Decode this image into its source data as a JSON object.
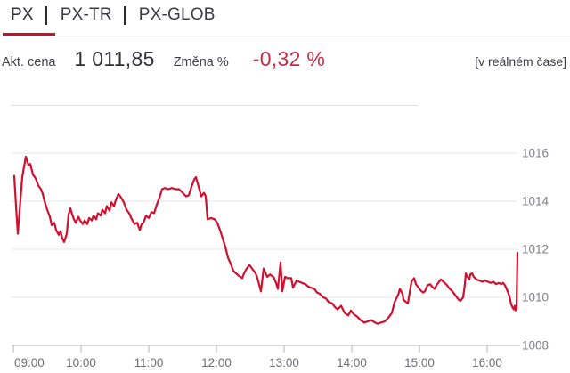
{
  "tabs": [
    {
      "label": "PX",
      "active": true
    },
    {
      "label": "PX-TR",
      "active": false
    },
    {
      "label": "PX-GLOB",
      "active": false
    }
  ],
  "price_row": {
    "price_label": "Akt. cena",
    "price_value": "1 011,85",
    "change_label": "Změna %",
    "change_value": "-0,32 %",
    "realtime_note": "[v reálném čase]"
  },
  "colors": {
    "accent_red": "#c8102e",
    "line_red": "#d10f2e",
    "change_red": "#c22e46",
    "grid_gray": "#e5e5e5",
    "axis_gray": "#b6b6bc"
  },
  "chart_data": {
    "type": "line",
    "title": "",
    "xlabel": "",
    "ylabel": "",
    "legend": "none",
    "grid": "horizontal",
    "y_labels_position": "right",
    "xlim": [
      9.0,
      16.47
    ],
    "ylim": [
      1008,
      1016
    ],
    "y_ticks": [
      {
        "v": 1008,
        "label": "1008"
      },
      {
        "v": 1010,
        "label": "1010"
      },
      {
        "v": 1012,
        "label": "1012"
      },
      {
        "v": 1014,
        "label": "1014"
      },
      {
        "v": 1016,
        "label": "1016"
      }
    ],
    "x_ticks": [
      {
        "t": 9,
        "label": "09:00"
      },
      {
        "t": 10,
        "label": "10:00"
      },
      {
        "t": 11,
        "label": "11:00"
      },
      {
        "t": 12,
        "label": "12:00"
      },
      {
        "t": 13,
        "label": "13:00"
      },
      {
        "t": 14,
        "label": "14:00"
      },
      {
        "t": 15,
        "label": "15:00"
      },
      {
        "t": 16,
        "label": "16:00"
      }
    ],
    "series_name": "PX",
    "points": [
      [
        9.013,
        1015.05
      ],
      [
        9.039,
        1013.8
      ],
      [
        9.066,
        1012.65
      ],
      [
        9.092,
        1013.6
      ],
      [
        9.132,
        1015.0
      ],
      [
        9.184,
        1015.85
      ],
      [
        9.224,
        1015.5
      ],
      [
        9.25,
        1015.55
      ],
      [
        9.289,
        1015.1
      ],
      [
        9.329,
        1014.95
      ],
      [
        9.368,
        1014.65
      ],
      [
        9.408,
        1014.5
      ],
      [
        9.434,
        1014.3
      ],
      [
        9.461,
        1014.0
      ],
      [
        9.5,
        1013.65
      ],
      [
        9.539,
        1013.35
      ],
      [
        9.566,
        1013.0
      ],
      [
        9.605,
        1013.1
      ],
      [
        9.632,
        1012.8
      ],
      [
        9.671,
        1012.6
      ],
      [
        9.697,
        1012.75
      ],
      [
        9.724,
        1012.45
      ],
      [
        9.75,
        1012.3
      ],
      [
        9.789,
        1012.65
      ],
      [
        9.816,
        1013.45
      ],
      [
        9.842,
        1013.7
      ],
      [
        9.868,
        1013.45
      ],
      [
        9.895,
        1013.25
      ],
      [
        9.921,
        1013.1
      ],
      [
        9.961,
        1013.35
      ],
      [
        9.987,
        1013.2
      ],
      [
        10.026,
        1013.05
      ],
      [
        10.053,
        1013.2
      ],
      [
        10.092,
        1013.05
      ],
      [
        10.118,
        1013.3
      ],
      [
        10.158,
        1013.2
      ],
      [
        10.184,
        1013.4
      ],
      [
        10.224,
        1013.25
      ],
      [
        10.25,
        1013.5
      ],
      [
        10.289,
        1013.4
      ],
      [
        10.316,
        1013.65
      ],
      [
        10.355,
        1013.5
      ],
      [
        10.382,
        1013.8
      ],
      [
        10.421,
        1013.6
      ],
      [
        10.447,
        1013.95
      ],
      [
        10.487,
        1013.8
      ],
      [
        10.513,
        1014.05
      ],
      [
        10.553,
        1014.3
      ],
      [
        10.592,
        1014.15
      ],
      [
        10.632,
        1013.95
      ],
      [
        10.671,
        1013.65
      ],
      [
        10.711,
        1013.5
      ],
      [
        10.75,
        1013.25
      ],
      [
        10.789,
        1013.05
      ],
      [
        10.829,
        1013.1
      ],
      [
        10.868,
        1012.8
      ],
      [
        10.895,
        1013.05
      ],
      [
        10.921,
        1013.1
      ],
      [
        10.961,
        1013.4
      ],
      [
        11.0,
        1013.3
      ],
      [
        11.039,
        1013.55
      ],
      [
        11.079,
        1013.5
      ],
      [
        11.118,
        1013.85
      ],
      [
        11.158,
        1014.15
      ],
      [
        11.197,
        1014.5
      ],
      [
        11.237,
        1014.55
      ],
      [
        11.289,
        1014.5
      ],
      [
        11.342,
        1014.55
      ],
      [
        11.395,
        1014.5
      ],
      [
        11.447,
        1014.5
      ],
      [
        11.5,
        1014.35
      ],
      [
        11.553,
        1014.2
      ],
      [
        11.592,
        1014.25
      ],
      [
        11.632,
        1014.6
      ],
      [
        11.671,
        1014.9
      ],
      [
        11.697,
        1015.0
      ],
      [
        11.737,
        1014.6
      ],
      [
        11.776,
        1014.2
      ],
      [
        11.816,
        1014.35
      ],
      [
        11.842,
        1014.2
      ],
      [
        11.868,
        1013.25
      ],
      [
        11.921,
        1013.3
      ],
      [
        11.974,
        1013.25
      ],
      [
        12.013,
        1013.1
      ],
      [
        12.053,
        1012.8
      ],
      [
        12.092,
        1012.45
      ],
      [
        12.132,
        1012.1
      ],
      [
        12.171,
        1011.65
      ],
      [
        12.211,
        1011.4
      ],
      [
        12.25,
        1011.1
      ],
      [
        12.289,
        1011.0
      ],
      [
        12.329,
        1010.9
      ],
      [
        12.382,
        1010.8
      ],
      [
        12.408,
        1011.0
      ],
      [
        12.447,
        1011.2
      ],
      [
        12.487,
        1011.35
      ],
      [
        12.526,
        1011.2
      ],
      [
        12.579,
        1011.0
      ],
      [
        12.605,
        1010.8
      ],
      [
        12.658,
        1010.25
      ],
      [
        12.697,
        1011.2
      ],
      [
        12.75,
        1010.85
      ],
      [
        12.789,
        1010.95
      ],
      [
        12.842,
        1010.85
      ],
      [
        12.882,
        1010.6
      ],
      [
        12.908,
        1010.35
      ],
      [
        12.947,
        1011.45
      ],
      [
        12.974,
        1010.25
      ],
      [
        13.013,
        1010.85
      ],
      [
        13.053,
        1010.8
      ],
      [
        13.105,
        1010.8
      ],
      [
        13.132,
        1010.4
      ],
      [
        13.184,
        1010.7
      ],
      [
        13.224,
        1010.65
      ],
      [
        13.263,
        1010.6
      ],
      [
        13.316,
        1010.55
      ],
      [
        13.355,
        1010.45
      ],
      [
        13.395,
        1010.4
      ],
      [
        13.447,
        1010.35
      ],
      [
        13.487,
        1010.2
      ],
      [
        13.526,
        1010.15
      ],
      [
        13.579,
        1010.0
      ],
      [
        13.618,
        1009.95
      ],
      [
        13.658,
        1009.8
      ],
      [
        13.711,
        1009.75
      ],
      [
        13.75,
        1009.6
      ],
      [
        13.789,
        1009.5
      ],
      [
        13.842,
        1009.65
      ],
      [
        13.895,
        1009.35
      ],
      [
        13.947,
        1009.25
      ],
      [
        13.987,
        1009.45
      ],
      [
        14.026,
        1009.3
      ],
      [
        14.079,
        1009.2
      ],
      [
        14.132,
        1009.05
      ],
      [
        14.184,
        1008.95
      ],
      [
        14.237,
        1009.0
      ],
      [
        14.289,
        1009.05
      ],
      [
        14.342,
        1008.95
      ],
      [
        14.382,
        1008.9
      ],
      [
        14.434,
        1008.95
      ],
      [
        14.487,
        1009.0
      ],
      [
        14.539,
        1009.15
      ],
      [
        14.592,
        1009.35
      ],
      [
        14.632,
        1009.8
      ],
      [
        14.684,
        1010.1
      ],
      [
        14.711,
        1010.35
      ],
      [
        14.75,
        1010.15
      ],
      [
        14.763,
        1009.9
      ],
      [
        14.803,
        1009.8
      ],
      [
        14.829,
        1009.75
      ],
      [
        14.882,
        1010.65
      ],
      [
        14.921,
        1010.8
      ],
      [
        14.947,
        1010.55
      ],
      [
        14.961,
        1010.5
      ],
      [
        15.013,
        1010.3
      ],
      [
        15.053,
        1010.2
      ],
      [
        15.079,
        1010.25
      ],
      [
        15.118,
        1010.5
      ],
      [
        15.158,
        1010.55
      ],
      [
        15.184,
        1010.45
      ],
      [
        15.224,
        1010.35
      ],
      [
        15.25,
        1010.5
      ],
      [
        15.289,
        1010.65
      ],
      [
        15.316,
        1010.75
      ],
      [
        15.355,
        1010.65
      ],
      [
        15.408,
        1010.5
      ],
      [
        15.447,
        1010.35
      ],
      [
        15.487,
        1010.25
      ],
      [
        15.539,
        1010.05
      ],
      [
        15.579,
        1009.9
      ],
      [
        15.605,
        1009.85
      ],
      [
        15.645,
        1010.0
      ],
      [
        15.671,
        1010.55
      ],
      [
        15.684,
        1011.0
      ],
      [
        15.711,
        1010.85
      ],
      [
        15.737,
        1010.75
      ],
      [
        15.75,
        1010.95
      ],
      [
        15.776,
        1011.0
      ],
      [
        15.803,
        1010.85
      ],
      [
        15.842,
        1010.75
      ],
      [
        15.882,
        1010.7
      ],
      [
        15.934,
        1010.65
      ],
      [
        15.974,
        1010.7
      ],
      [
        16.013,
        1010.65
      ],
      [
        16.053,
        1010.6
      ],
      [
        16.092,
        1010.65
      ],
      [
        16.132,
        1010.55
      ],
      [
        16.171,
        1010.6
      ],
      [
        16.211,
        1010.55
      ],
      [
        16.237,
        1010.6
      ],
      [
        16.263,
        1010.5
      ],
      [
        16.303,
        1010.25
      ],
      [
        16.329,
        1010.05
      ],
      [
        16.355,
        1009.7
      ],
      [
        16.382,
        1009.55
      ],
      [
        16.395,
        1009.5
      ],
      [
        16.408,
        1009.65
      ],
      [
        16.421,
        1009.45
      ],
      [
        16.434,
        1009.55
      ],
      [
        16.447,
        1011.85
      ]
    ]
  }
}
